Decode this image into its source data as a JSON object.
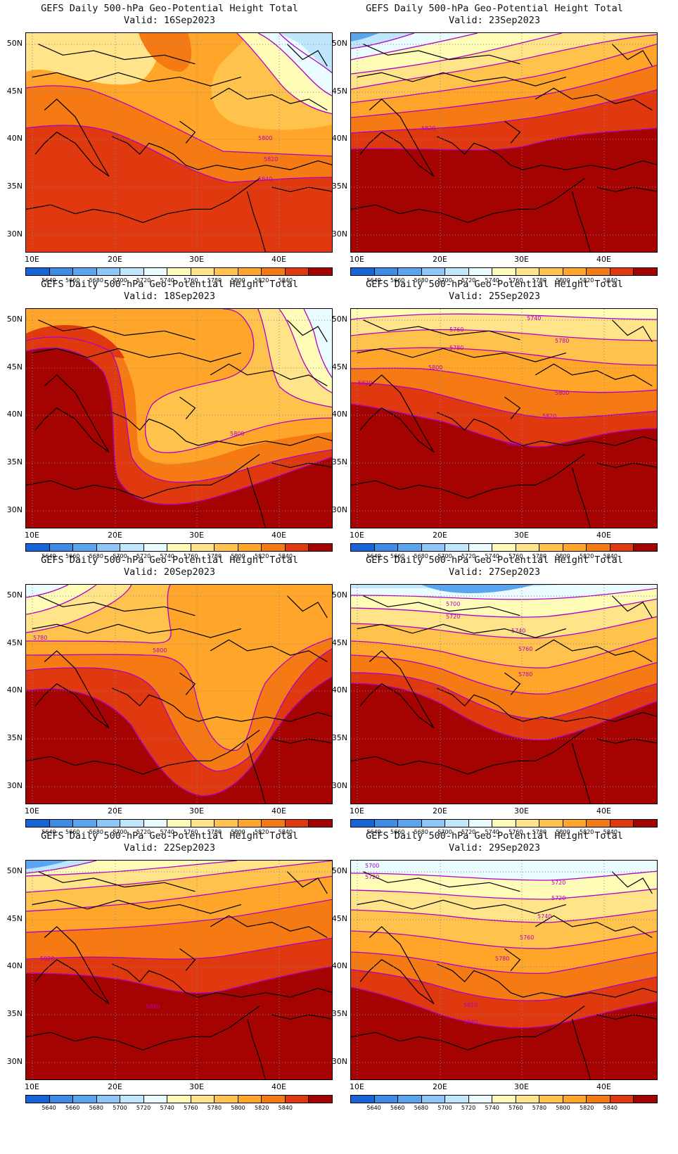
{
  "title_line": "GEFS Daily 500-hPa Geo-Potential Height Total",
  "valid_prefix": "Valid:",
  "y_ticks": [
    "50N",
    "45N",
    "40N",
    "35N",
    "30N"
  ],
  "x_ticks": [
    "10E",
    "20E",
    "30E",
    "40E"
  ],
  "colorbar_labels": [
    "5640",
    "5660",
    "5680",
    "5700",
    "5720",
    "5740",
    "5760",
    "5780",
    "5800",
    "5820",
    "5840"
  ],
  "colors": [
    "#1565d8",
    "#3d8ce8",
    "#5aa5f0",
    "#8ec6f8",
    "#bfe6fc",
    "#eafcff",
    "#fffcb8",
    "#ffe48a",
    "#ffc24d",
    "#ffa529",
    "#f57a14",
    "#e0380f",
    "#a50202"
  ],
  "contour_color": "#b000c8",
  "panels": [
    {
      "valid": "16Sep2023",
      "labels": [
        "5800",
        "5820",
        "5840"
      ]
    },
    {
      "valid": "23Sep2023",
      "labels": [
        "5820"
      ]
    },
    {
      "valid": "18Sep2023",
      "labels": [
        "5800"
      ]
    },
    {
      "valid": "25Sep2023",
      "labels": [
        "5740",
        "5760",
        "5780",
        "5780",
        "5800",
        "5800",
        "5820",
        "5820",
        "5840"
      ]
    },
    {
      "valid": "20Sep2023",
      "labels": [
        "5780",
        "5800"
      ]
    },
    {
      "valid": "27Sep2023",
      "labels": [
        "5700",
        "5720",
        "5740",
        "5760",
        "5780"
      ]
    },
    {
      "valid": "22Sep2023",
      "labels": [
        "5820",
        "5820"
      ]
    },
    {
      "valid": "29Sep2023",
      "labels": [
        "5700",
        "5720",
        "5720",
        "5720",
        "5740",
        "5760",
        "5780",
        "5820",
        "5840"
      ]
    }
  ]
}
